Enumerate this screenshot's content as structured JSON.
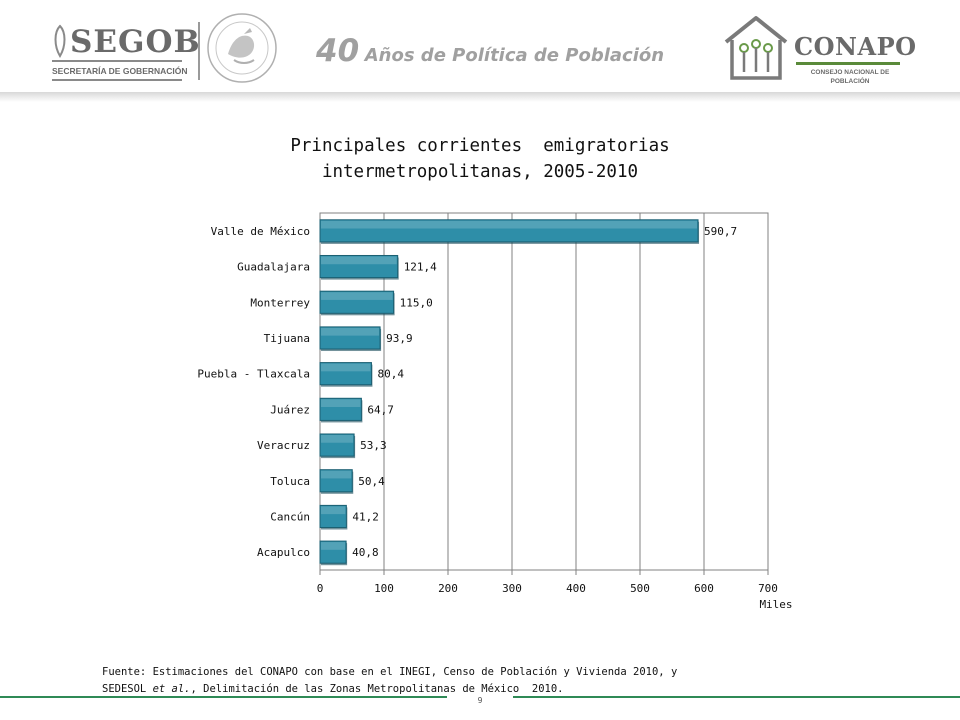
{
  "header": {
    "segob_name": "SEGOB",
    "segob_subtitle": "SECRETARÍA DE GOBERNACIÓN",
    "seal_text": "ESTADOS UNIDOS MEXICANOS",
    "title_number": "40",
    "title_rest": "Años de Política de Población",
    "conapo_name": "CONAPO",
    "conapo_subtitle_1": "CONSEJO NACIONAL DE",
    "conapo_subtitle_2": "POBLACIÓN"
  },
  "chart_title": {
    "line1": "Principales corrientes  emigratorias",
    "line2": "intermetropolitanas, 2005-2010"
  },
  "chart_data": {
    "type": "bar",
    "orientation": "horizontal",
    "categories": [
      "Valle de México",
      "Guadalajara",
      "Monterrey",
      "Tijuana",
      "Puebla - Tlaxcala",
      "Juárez",
      "Veracruz",
      "Toluca",
      "Cancún",
      "Acapulco"
    ],
    "values": [
      590.7,
      121.4,
      115.0,
      93.9,
      80.4,
      64.7,
      53.3,
      50.4,
      41.2,
      40.8
    ],
    "data_labels": [
      "590,7",
      "121,4",
      "115,0",
      "93,9",
      "80,4",
      "64,7",
      "53,3",
      "50,4",
      "41,2",
      "40,8"
    ],
    "xlim": [
      0,
      700
    ],
    "xticks": [
      0,
      100,
      200,
      300,
      400,
      500,
      600,
      700
    ],
    "xlabel": "Miles",
    "grid": true,
    "bar_color": "#2e8ea8",
    "bar_edge_color": "#1b5f72"
  },
  "footer": {
    "line1": "Fuente: Estimaciones del CONAPO con base en el INEGI, Censo de Población y Vivienda 2010, y",
    "line2_pre": "SEDESOL ",
    "line2_italic": "et al.",
    "line2_post": ", Delimitación de las Zonas Metropolitanas de México  2010.",
    "page_number": "9"
  },
  "colors": {
    "accent_green": "#2f8a56",
    "logo_gray": "#6a6a6a"
  }
}
